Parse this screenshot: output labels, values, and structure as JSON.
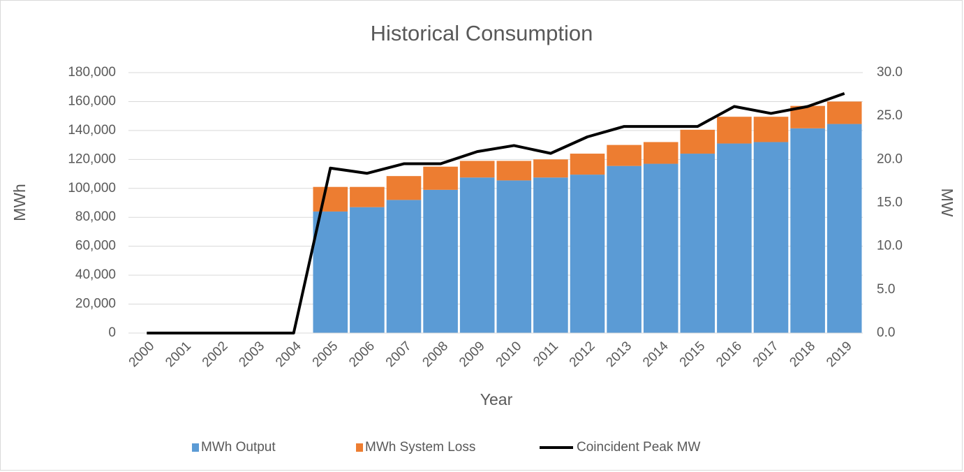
{
  "chart_data": {
    "type": "bar_line",
    "title": "Historical Consumption",
    "xlabel": "Year",
    "ylabel": "MWh",
    "y2label": "MW",
    "categories": [
      "2000",
      "2001",
      "2002",
      "2003",
      "2004",
      "2005",
      "2006",
      "2007",
      "2008",
      "2009",
      "2010",
      "2011",
      "2012",
      "2013",
      "2014",
      "2015",
      "2016",
      "2017",
      "2018",
      "2019"
    ],
    "series": [
      {
        "name": "MWh Output",
        "color": "#5b9bd5",
        "stacked": true,
        "values": [
          null,
          null,
          null,
          null,
          null,
          84000,
          87000,
          92000,
          99000,
          107500,
          105500,
          107500,
          109500,
          115500,
          117000,
          124000,
          131000,
          132000,
          141500,
          144500
        ]
      },
      {
        "name": "MWh System Loss",
        "color": "#ed7d31",
        "stacked": true,
        "values": [
          null,
          null,
          null,
          null,
          null,
          17000,
          14000,
          16500,
          16000,
          11500,
          13500,
          12500,
          14500,
          14500,
          15000,
          16500,
          18500,
          17500,
          15500,
          15500
        ]
      },
      {
        "name": "Coincident Peak MW",
        "color": "#000000",
        "axis": "y2",
        "kind": "line",
        "values": [
          0,
          0,
          0,
          0,
          0,
          19.0,
          18.4,
          19.5,
          19.5,
          20.9,
          21.6,
          20.7,
          22.6,
          23.8,
          23.8,
          23.8,
          26.1,
          25.3,
          26.1,
          27.6
        ]
      }
    ],
    "ylim": [
      0,
      180000
    ],
    "yticks": [
      0,
      {
        "value": 20000,
        "label": "20,000"
      },
      {
        "value": 40000,
        "label": "40,000"
      },
      {
        "value": 60000,
        "label": "60,000"
      },
      {
        "value": 80000,
        "label": "80,000"
      },
      {
        "value": 100000,
        "label": "100,000"
      },
      {
        "value": 120000,
        "label": "120,000"
      },
      {
        "value": 140000,
        "label": "140,000"
      },
      {
        "value": 160000,
        "label": "160,000"
      },
      {
        "value": 180000,
        "label": "180,000"
      }
    ],
    "y2lim": [
      0,
      30
    ],
    "y2ticks": [
      {
        "value": 0,
        "label": "0.0"
      },
      {
        "value": 5,
        "label": "5.0"
      },
      {
        "value": 10,
        "label": "10.0"
      },
      {
        "value": 15,
        "label": "15.0"
      },
      {
        "value": 20,
        "label": "20.0"
      },
      {
        "value": 25,
        "label": "25.0"
      },
      {
        "value": 30,
        "label": "30.0"
      }
    ],
    "grid": true,
    "legend": "bottom"
  }
}
